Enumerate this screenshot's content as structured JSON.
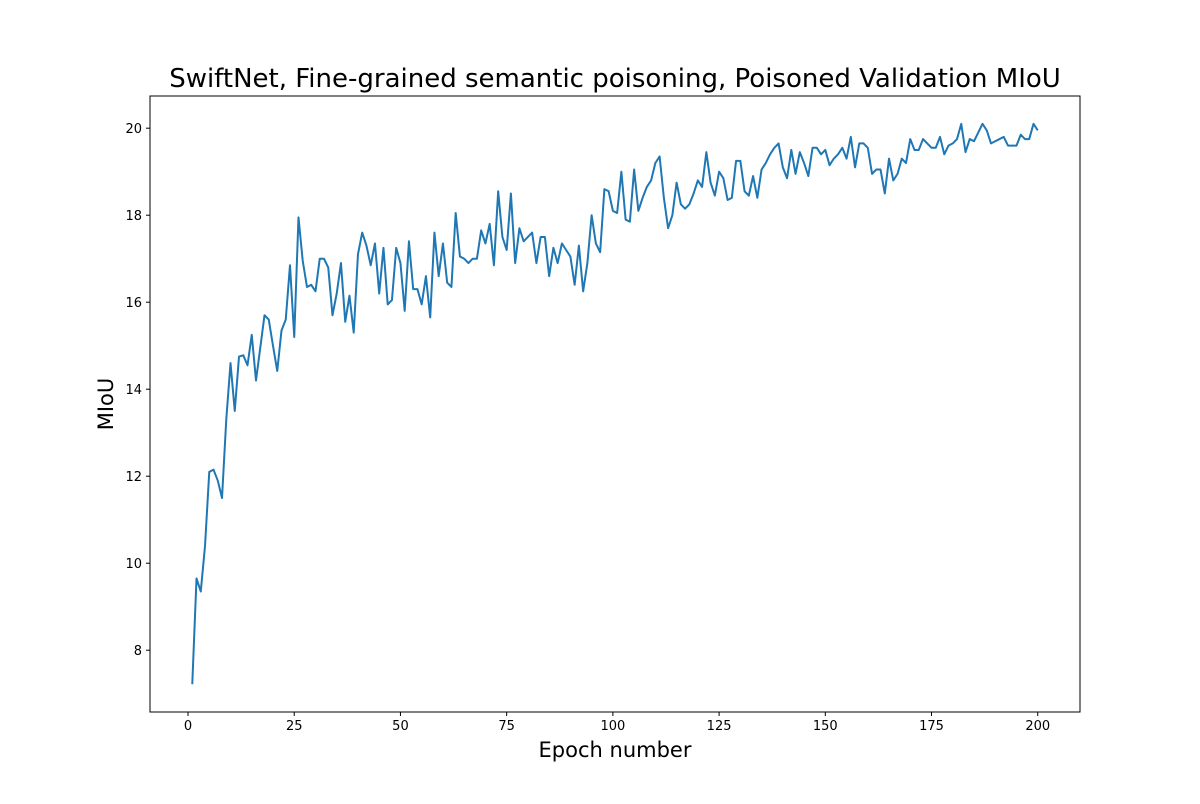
{
  "chart_data": {
    "type": "line",
    "title": "SwiftNet, Fine-grained semantic poisoning, Poisoned Validation MIoU",
    "x_label": "Epoch number",
    "y_label": "MIoU",
    "color": "#1f77b4",
    "x": [
      1,
      2,
      3,
      4,
      5,
      6,
      7,
      8,
      9,
      10,
      11,
      12,
      13,
      14,
      15,
      16,
      17,
      18,
      19,
      20,
      21,
      22,
      23,
      24,
      25,
      26,
      27,
      28,
      29,
      30,
      31,
      32,
      33,
      34,
      35,
      36,
      37,
      38,
      39,
      40,
      41,
      42,
      43,
      44,
      45,
      46,
      47,
      48,
      49,
      50,
      51,
      52,
      53,
      54,
      55,
      56,
      57,
      58,
      59,
      60,
      61,
      62,
      63,
      64,
      65,
      66,
      67,
      68,
      69,
      70,
      71,
      72,
      73,
      74,
      75,
      76,
      77,
      78,
      79,
      80,
      81,
      82,
      83,
      84,
      85,
      86,
      87,
      88,
      89,
      90,
      91,
      92,
      93,
      94,
      95,
      96,
      97,
      98,
      99,
      100,
      101,
      102,
      103,
      104,
      105,
      106,
      107,
      108,
      109,
      110,
      111,
      112,
      113,
      114,
      115,
      116,
      117,
      118,
      119,
      120,
      121,
      122,
      123,
      124,
      125,
      126,
      127,
      128,
      129,
      130,
      131,
      132,
      133,
      134,
      135,
      136,
      137,
      138,
      139,
      140,
      141,
      142,
      143,
      144,
      145,
      146,
      147,
      148,
      149,
      150,
      151,
      152,
      153,
      154,
      155,
      156,
      157,
      158,
      159,
      160,
      161,
      162,
      163,
      164,
      165,
      166,
      167,
      168,
      169,
      170,
      171,
      172,
      173,
      174,
      175,
      176,
      177,
      178,
      179,
      180,
      181,
      182,
      183,
      184,
      185,
      186,
      187,
      188,
      189,
      190,
      191,
      192,
      193,
      194,
      195,
      196,
      197,
      198,
      199,
      200
    ],
    "values": [
      7.22,
      9.65,
      9.35,
      10.4,
      12.1,
      12.15,
      11.9,
      11.5,
      13.3,
      14.6,
      13.5,
      14.75,
      14.78,
      14.55,
      15.25,
      14.2,
      14.95,
      15.7,
      15.6,
      15.0,
      14.42,
      15.35,
      15.6,
      16.85,
      15.2,
      17.95,
      16.95,
      16.35,
      16.4,
      16.25,
      17.0,
      17.0,
      16.8,
      15.7,
      16.2,
      16.9,
      15.55,
      16.15,
      15.3,
      17.1,
      17.6,
      17.3,
      16.85,
      17.35,
      16.2,
      17.25,
      15.95,
      16.05,
      17.25,
      16.9,
      15.8,
      17.4,
      16.3,
      16.3,
      15.95,
      16.6,
      15.65,
      17.6,
      16.6,
      17.35,
      16.45,
      16.35,
      18.05,
      17.05,
      17.0,
      16.9,
      17.0,
      17.0,
      17.65,
      17.35,
      17.8,
      16.85,
      18.55,
      17.5,
      17.2,
      18.5,
      16.9,
      17.7,
      17.4,
      17.5,
      17.6,
      16.9,
      17.5,
      17.5,
      16.6,
      17.25,
      16.9,
      17.35,
      17.2,
      17.05,
      16.4,
      17.3,
      16.25,
      16.9,
      18.0,
      17.35,
      17.15,
      18.6,
      18.55,
      18.1,
      18.05,
      19.0,
      17.9,
      17.85,
      19.05,
      18.1,
      18.4,
      18.65,
      18.8,
      19.2,
      19.35,
      18.4,
      17.7,
      18.0,
      18.75,
      18.25,
      18.15,
      18.25,
      18.5,
      18.8,
      18.65,
      19.45,
      18.75,
      18.45,
      19.0,
      18.85,
      18.35,
      18.4,
      19.25,
      19.25,
      18.55,
      18.45,
      18.9,
      18.4,
      19.05,
      19.2,
      19.4,
      19.55,
      19.65,
      19.1,
      18.85,
      19.5,
      18.95,
      19.45,
      19.2,
      18.9,
      19.55,
      19.55,
      19.4,
      19.5,
      19.15,
      19.3,
      19.4,
      19.55,
      19.3,
      19.8,
      19.1,
      19.65,
      19.65,
      19.55,
      18.95,
      19.05,
      19.05,
      18.5,
      19.3,
      18.8,
      18.95,
      19.3,
      19.2,
      19.75,
      19.5,
      19.5,
      19.75,
      19.65,
      19.55,
      19.55,
      19.8,
      19.4,
      19.6,
      19.65,
      19.75,
      20.1,
      19.45,
      19.75,
      19.7,
      19.9,
      20.1,
      19.95,
      19.65,
      19.7,
      19.75,
      19.8,
      19.6,
      19.6,
      19.6,
      19.85,
      19.75,
      19.75,
      20.1,
      19.95
    ],
    "xlim": [
      -8.95,
      209.95
    ],
    "ylim": [
      6.58,
      20.74
    ],
    "xticks": [
      0,
      25,
      50,
      75,
      100,
      125,
      150,
      175,
      200
    ],
    "yticks": [
      8,
      10,
      12,
      14,
      16,
      18,
      20
    ]
  }
}
